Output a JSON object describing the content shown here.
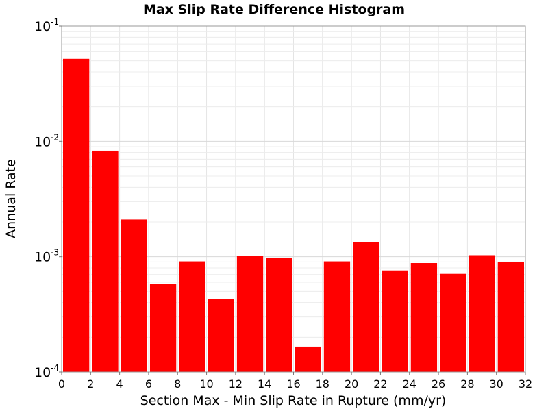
{
  "chart_data": {
    "type": "bar",
    "title": "Max Slip Rate Difference Histogram",
    "xlabel": "Section Max - Min Slip Rate in Rupture (mm/yr)",
    "ylabel": "Annual Rate",
    "yscale": "log",
    "xlim": [
      0,
      32
    ],
    "ylim": [
      0.0001,
      0.1
    ],
    "bin_width": 2,
    "x_ticks": [
      "0",
      "2",
      "4",
      "6",
      "8",
      "10",
      "12",
      "14",
      "16",
      "18",
      "20",
      "22",
      "24",
      "26",
      "28",
      "30",
      "32"
    ],
    "y_ticks": [
      {
        "base": "10",
        "exp": "-4"
      },
      {
        "base": "10",
        "exp": "-3"
      },
      {
        "base": "10",
        "exp": "-2"
      },
      {
        "base": "10",
        "exp": "-1"
      }
    ],
    "bin_starts": [
      0,
      2,
      4,
      6,
      8,
      10,
      12,
      14,
      16,
      18,
      20,
      22,
      24,
      26,
      28,
      30
    ],
    "values": [
      0.052,
      0.0083,
      0.0021,
      0.00058,
      0.00091,
      0.00043,
      0.00102,
      0.00097,
      0.000166,
      0.00091,
      0.00134,
      0.00076,
      0.00088,
      0.00071,
      0.00103,
      0.0009
    ],
    "bar_color": "#ff0000",
    "grid": true,
    "legend": "none"
  }
}
